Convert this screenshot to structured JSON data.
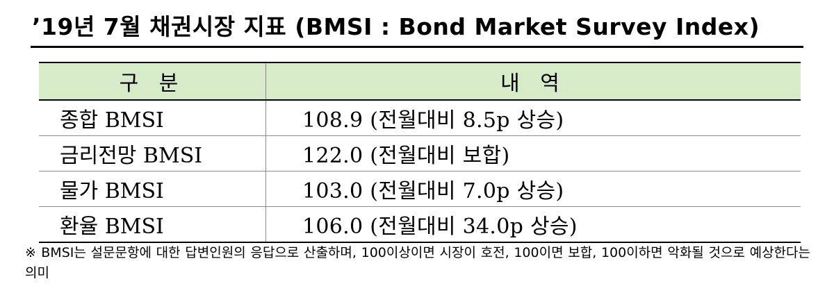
{
  "title": "’19년 7월 채권시장 지표 (BMSI : Bond Market Survey Index)",
  "table": {
    "headers": [
      "구 분",
      "내 역"
    ],
    "rows": [
      {
        "item": "종합 BMSI",
        "detail": "108.9 (전월대비 8.5p 상승)"
      },
      {
        "item": "금리전망 BMSI",
        "detail": "122.0 (전월대비 보합)"
      },
      {
        "item": "물가 BMSI",
        "detail": "103.0 (전월대비 7.0p 상승)"
      },
      {
        "item": "환율 BMSI",
        "detail": "106.0 (전월대비 34.0p 상승)"
      }
    ]
  },
  "footnote": "※ BMSI는 설문문항에 대한 답변인원의 응답으로 산출하며, 100이상이면 시장이 호전, 100이면 보합, 100이하면 악화될 것으로 예상한다는 의미",
  "colors": {
    "header_background": "#d6ecc9",
    "rule": "#000000",
    "grid": "#8a8a8a"
  }
}
